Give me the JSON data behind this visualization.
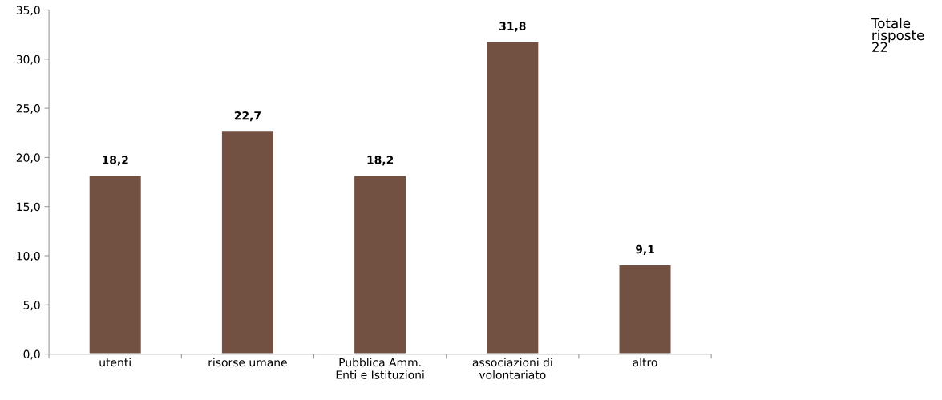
{
  "chart_data": {
    "type": "bar",
    "categories": [
      "utenti",
      "risorse umane",
      "Pubblica Amm.\nEnti e Istituzioni",
      "associazioni di\nvolontariato",
      "altro"
    ],
    "values": [
      18.2,
      22.7,
      18.2,
      31.8,
      9.1
    ],
    "value_labels": [
      "18,2",
      "22,7",
      "18,2",
      "31,8",
      "9,1"
    ],
    "color": "#735142",
    "ylim": [
      0,
      35
    ],
    "yticks": [
      {
        "value": 0,
        "label": "0,0"
      },
      {
        "value": 5,
        "label": "5,0"
      },
      {
        "value": 10,
        "label": "10,0"
      },
      {
        "value": 15,
        "label": "15,0"
      },
      {
        "value": 20,
        "label": "20,0"
      },
      {
        "value": 25,
        "label": "25,0"
      },
      {
        "value": 30,
        "label": "30,0"
      },
      {
        "value": 35,
        "label": "35,0"
      }
    ],
    "grid": false,
    "annotations": [
      "Totale\nrisposte\n22"
    ]
  }
}
